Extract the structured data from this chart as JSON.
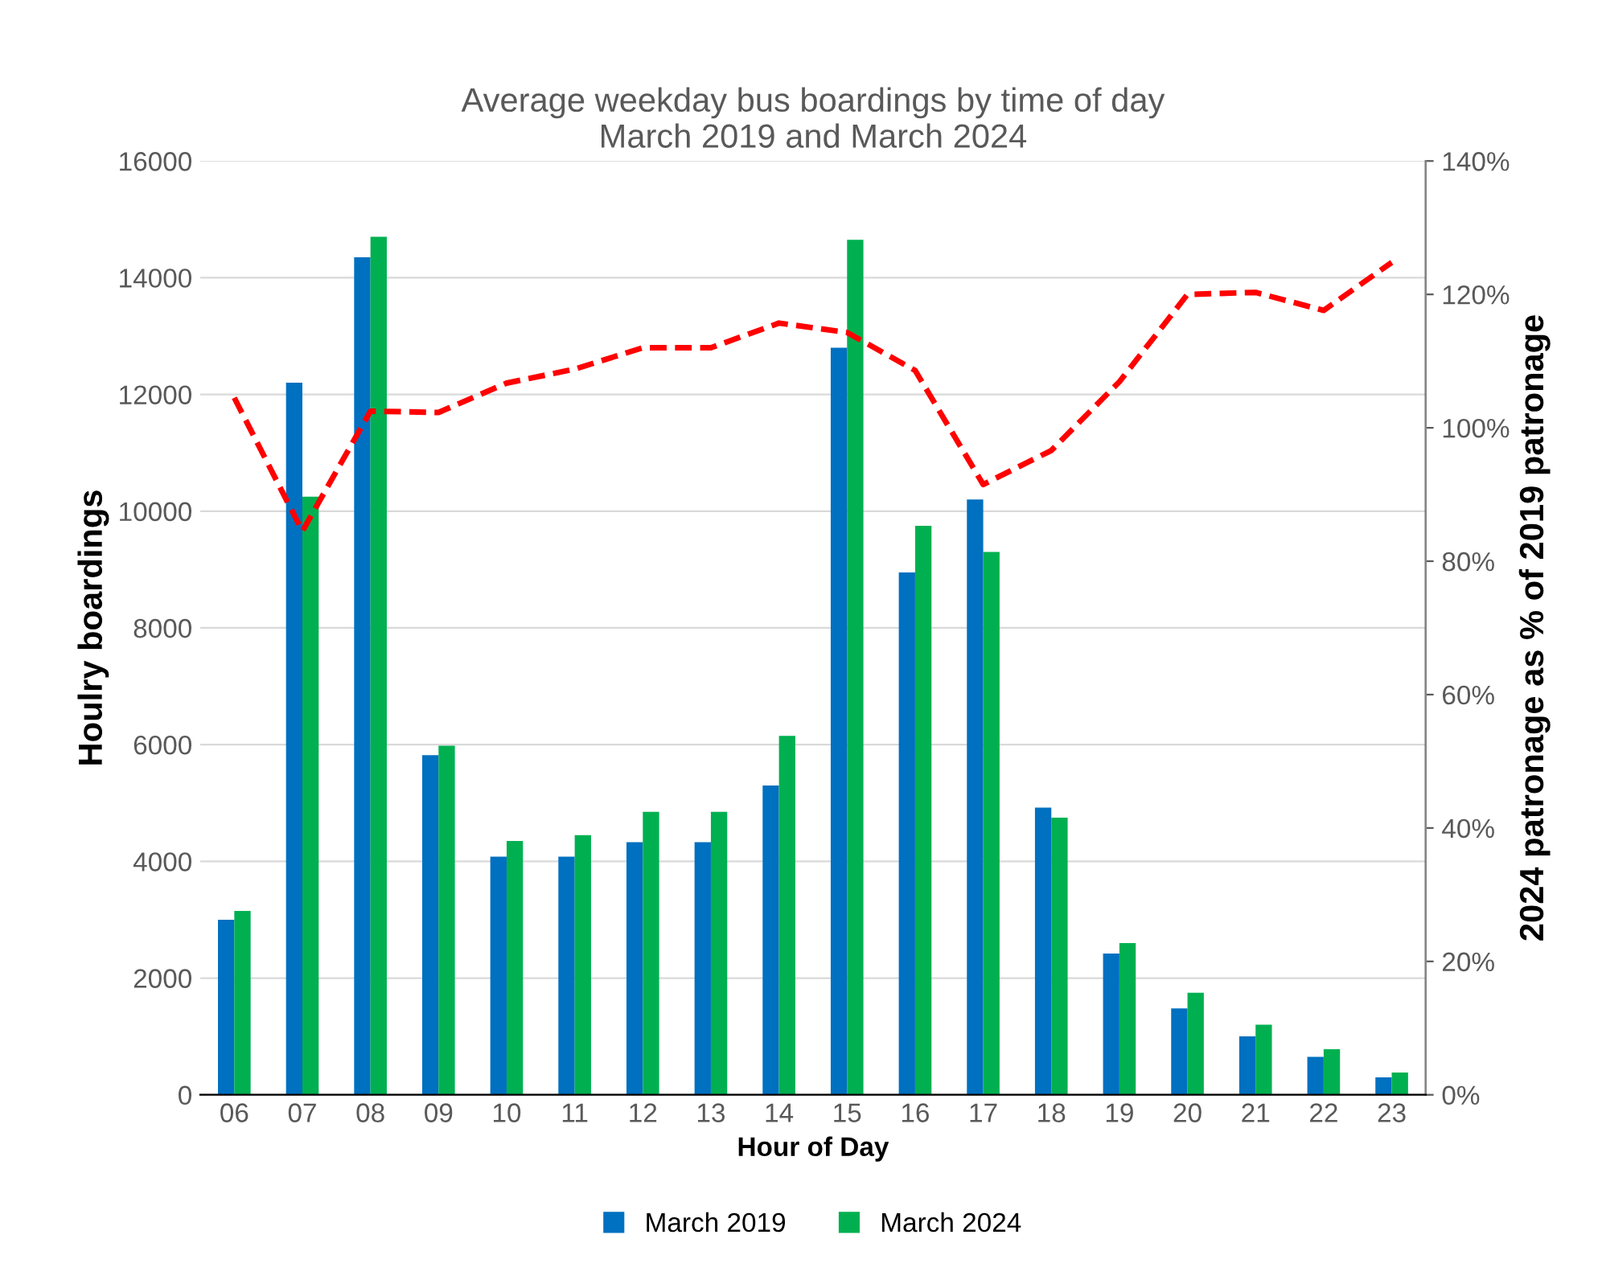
{
  "chart_data": {
    "type": "bar",
    "title": "Average weekday bus boardings by time of day\nMarch 2019 and March 2024",
    "xlabel": "Hour of Day",
    "ylabel": "Houlry boardings",
    "y2label": "2024 patronage as % of 2019 patronage",
    "categories": [
      "06",
      "07",
      "08",
      "09",
      "10",
      "11",
      "12",
      "13",
      "14",
      "15",
      "16",
      "17",
      "18",
      "19",
      "20",
      "21",
      "22",
      "23"
    ],
    "series": [
      {
        "name": "March 2019",
        "color": "#0070c0",
        "values": [
          3000,
          12200,
          14350,
          5820,
          4080,
          4080,
          4330,
          4330,
          5300,
          12800,
          8950,
          10200,
          4920,
          2420,
          1480,
          1000,
          650,
          300
        ]
      },
      {
        "name": "March 2024",
        "color": "#00b050",
        "values": [
          3150,
          10250,
          14700,
          5980,
          4350,
          4450,
          4850,
          4850,
          6150,
          14650,
          9750,
          9300,
          4750,
          2600,
          1750,
          1200,
          780,
          380
        ]
      },
      {
        "type": "line",
        "axis": "y2",
        "color": "#ff0000",
        "line_style": "dashed",
        "marker": "none",
        "values": [
          104.5,
          84.5,
          102.5,
          102.3,
          106.7,
          108.8,
          112,
          112,
          115.7,
          114.3,
          108.6,
          91.5,
          96.6,
          106.9,
          120,
          120.3,
          117.6,
          124.8
        ]
      }
    ],
    "ylim": [
      0,
      16000
    ],
    "yticks": [
      0,
      2000,
      4000,
      6000,
      8000,
      10000,
      12000,
      14000,
      16000
    ],
    "y2lim": [
      0,
      140
    ],
    "y2ticks": [
      {
        "value": 0,
        "label": "0%"
      },
      {
        "value": 20,
        "label": "20%"
      },
      {
        "value": 40,
        "label": "40%"
      },
      {
        "value": 60,
        "label": "60%"
      },
      {
        "value": 80,
        "label": "80%"
      },
      {
        "value": 100,
        "label": "100%"
      },
      {
        "value": 120,
        "label": "120%"
      },
      {
        "value": 140,
        "label": "140%"
      }
    ],
    "grid": "y",
    "legend": "bottom"
  }
}
